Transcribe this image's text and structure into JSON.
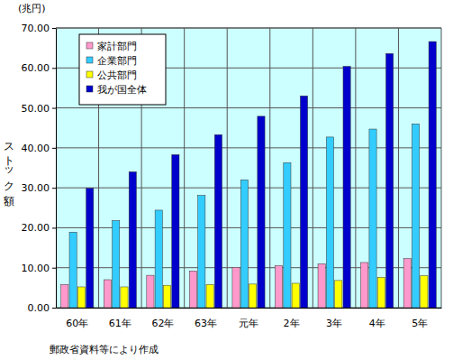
{
  "chart_data": {
    "type": "bar",
    "y_unit": "(兆円)",
    "y_label": "ストック額",
    "source": "郵政省資料等により作成",
    "categories": [
      "60年",
      "61年",
      "62年",
      "63年",
      "元年",
      "2年",
      "3年",
      "4年",
      "5年"
    ],
    "series": [
      {
        "name": "家計部門",
        "color": "#ff99cc",
        "values": [
          5.8,
          7.0,
          8.1,
          9.2,
          10.1,
          10.5,
          11.0,
          11.3,
          12.3
        ]
      },
      {
        "name": "企業部門",
        "color": "#33ccff",
        "values": [
          18.9,
          21.8,
          24.4,
          28.1,
          32.0,
          36.3,
          42.7,
          44.7,
          46.0
        ]
      },
      {
        "name": "公共部門",
        "color": "#ffff00",
        "values": [
          5.2,
          5.2,
          5.6,
          5.8,
          5.9,
          6.1,
          6.8,
          7.6,
          8.0
        ]
      },
      {
        "name": "我が国全体",
        "color": "#0000cc",
        "values": [
          29.9,
          34.0,
          38.3,
          43.3,
          47.9,
          53.0,
          60.4,
          63.6,
          66.6
        ]
      }
    ],
    "ylim": [
      0,
      70
    ],
    "yticks": [
      {
        "value": 0,
        "label": "0.00"
      },
      {
        "value": 10,
        "label": "10.00"
      },
      {
        "value": 20,
        "label": "20.00"
      },
      {
        "value": 30,
        "label": "30.00"
      },
      {
        "value": 40,
        "label": "40.00"
      },
      {
        "value": 50,
        "label": "50.00"
      },
      {
        "value": 60,
        "label": "60.00"
      },
      {
        "value": 70,
        "label": "70.00"
      }
    ],
    "grid": true,
    "legend": "upper left"
  }
}
